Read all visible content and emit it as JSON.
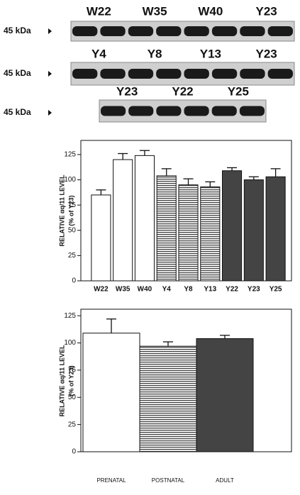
{
  "blots": [
    {
      "marker": "45 kDa",
      "lanes": [
        "W22",
        "W35",
        "W40",
        "Y23"
      ]
    },
    {
      "marker": "45 kDa",
      "lanes": [
        "Y4",
        "Y8",
        "Y13",
        "Y23"
      ]
    },
    {
      "marker": "45 kDa",
      "lanes": [
        "Y23",
        "Y22",
        "Y25"
      ]
    }
  ],
  "chart_data": [
    {
      "type": "bar",
      "y_label": "RELATIVE αq/11 LEVEL",
      "y_sublabel": "(% of Y23)",
      "categories": [
        "W22",
        "W35",
        "W40",
        "Y4",
        "Y8",
        "Y13",
        "Y22",
        "Y23",
        "Y25"
      ],
      "values": [
        85,
        120,
        124,
        104,
        95,
        93,
        109,
        100,
        103
      ],
      "errors": [
        5,
        6,
        5,
        7,
        6,
        5,
        3,
        3,
        8
      ],
      "fills": [
        "#ffffff",
        "#ffffff",
        "#ffffff",
        "hatch",
        "hatch",
        "hatch",
        "#444444",
        "#444444",
        "#444444"
      ],
      "ylim": [
        0,
        139
      ],
      "yticks": [
        0,
        25,
        50,
        75,
        100,
        125
      ]
    },
    {
      "type": "bar",
      "y_label": "RELATIVE αq/11 LEVEL",
      "y_sublabel": "(% of Y23)",
      "categories": [
        "PRENATAL",
        "POSTNATAL",
        "ADULT"
      ],
      "values": [
        109,
        97,
        104
      ],
      "errors": [
        13,
        4,
        3
      ],
      "fills": [
        "#ffffff",
        "hatch",
        "#444444"
      ],
      "ylim": [
        0,
        131
      ],
      "yticks": [
        0,
        25,
        50,
        75,
        100,
        125
      ]
    }
  ]
}
